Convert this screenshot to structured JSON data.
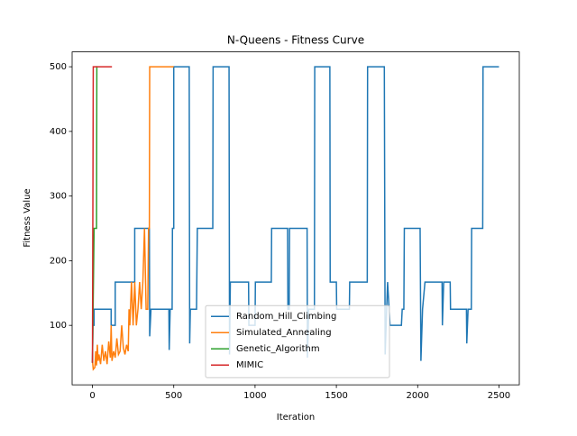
{
  "chart_data": {
    "type": "line",
    "title": "N-Queens - Fitness Curve",
    "x_label": "Iteration",
    "y_label": "Fitness Value",
    "xlim": [
      -125,
      2625
    ],
    "ylim": [
      8,
      523
    ],
    "xticks": [
      0,
      500,
      1000,
      1500,
      2000,
      2500
    ],
    "yticks": [
      100,
      200,
      300,
      400,
      500
    ],
    "legend": "lower center",
    "series": [
      {
        "name": "Random_Hill_Climbing",
        "color": "#1f77b4",
        "x": [
          0,
          3,
          10,
          10,
          115,
          115,
          140,
          140,
          260,
          260,
          350,
          352,
          360,
          470,
          472,
          478,
          490,
          492,
          500,
          500,
          595,
          598,
          602,
          640,
          645,
          740,
          742,
          840,
          843,
          848,
          960,
          962,
          1000,
          1002,
          1100,
          1102,
          1200,
          1202,
          1210,
          1212,
          1320,
          1322,
          1330,
          1365,
          1367,
          1460,
          1462,
          1500,
          1502,
          1580,
          1582,
          1690,
          1692,
          1795,
          1800,
          1815,
          1830,
          1900,
          1905,
          1915,
          1918,
          2015,
          2020,
          2030,
          2045,
          2150,
          2152,
          2160,
          2200,
          2202,
          2300,
          2302,
          2310,
          2330,
          2332,
          2400,
          2402,
          2500
        ],
        "values": [
          42,
          100,
          100,
          125,
          125,
          100,
          100,
          167,
          167,
          250,
          250,
          83,
          125,
          125,
          62,
          125,
          125,
          250,
          250,
          500,
          500,
          72,
          125,
          125,
          250,
          250,
          500,
          500,
          55,
          167,
          167,
          100,
          100,
          167,
          167,
          250,
          250,
          125,
          125,
          250,
          250,
          50,
          125,
          125,
          500,
          500,
          167,
          167,
          125,
          125,
          167,
          167,
          500,
          500,
          55,
          167,
          100,
          100,
          125,
          125,
          250,
          250,
          45,
          125,
          167,
          167,
          100,
          167,
          167,
          125,
          125,
          72,
          125,
          125,
          250,
          250,
          500,
          500
        ]
      },
      {
        "name": "Simulated_Annealing",
        "color": "#ff7f0e",
        "x": [
          0,
          5,
          15,
          20,
          25,
          30,
          35,
          40,
          50,
          60,
          70,
          80,
          90,
          100,
          110,
          115,
          120,
          130,
          140,
          150,
          160,
          170,
          180,
          190,
          200,
          210,
          220,
          225,
          230,
          240,
          250,
          260,
          270,
          280,
          290,
          300,
          310,
          320,
          330,
          340,
          345,
          350,
          352,
          500
        ],
        "values": [
          45,
          32,
          35,
          60,
          38,
          70,
          45,
          55,
          40,
          70,
          45,
          60,
          40,
          75,
          50,
          100,
          45,
          60,
          50,
          80,
          55,
          60,
          100,
          65,
          55,
          70,
          60,
          125,
          100,
          167,
          100,
          167,
          100,
          125,
          167,
          125,
          167,
          250,
          125,
          125,
          250,
          250,
          500,
          500
        ]
      },
      {
        "name": "Genetic_Algorithm",
        "color": "#2ca02c",
        "x": [
          0,
          10,
          25,
          27,
          30
        ],
        "values": [
          42,
          250,
          250,
          500,
          500
        ]
      },
      {
        "name": "MIMIC",
        "color": "#d62728",
        "x": [
          0,
          5,
          120
        ],
        "values": [
          42,
          500,
          500
        ]
      }
    ]
  }
}
